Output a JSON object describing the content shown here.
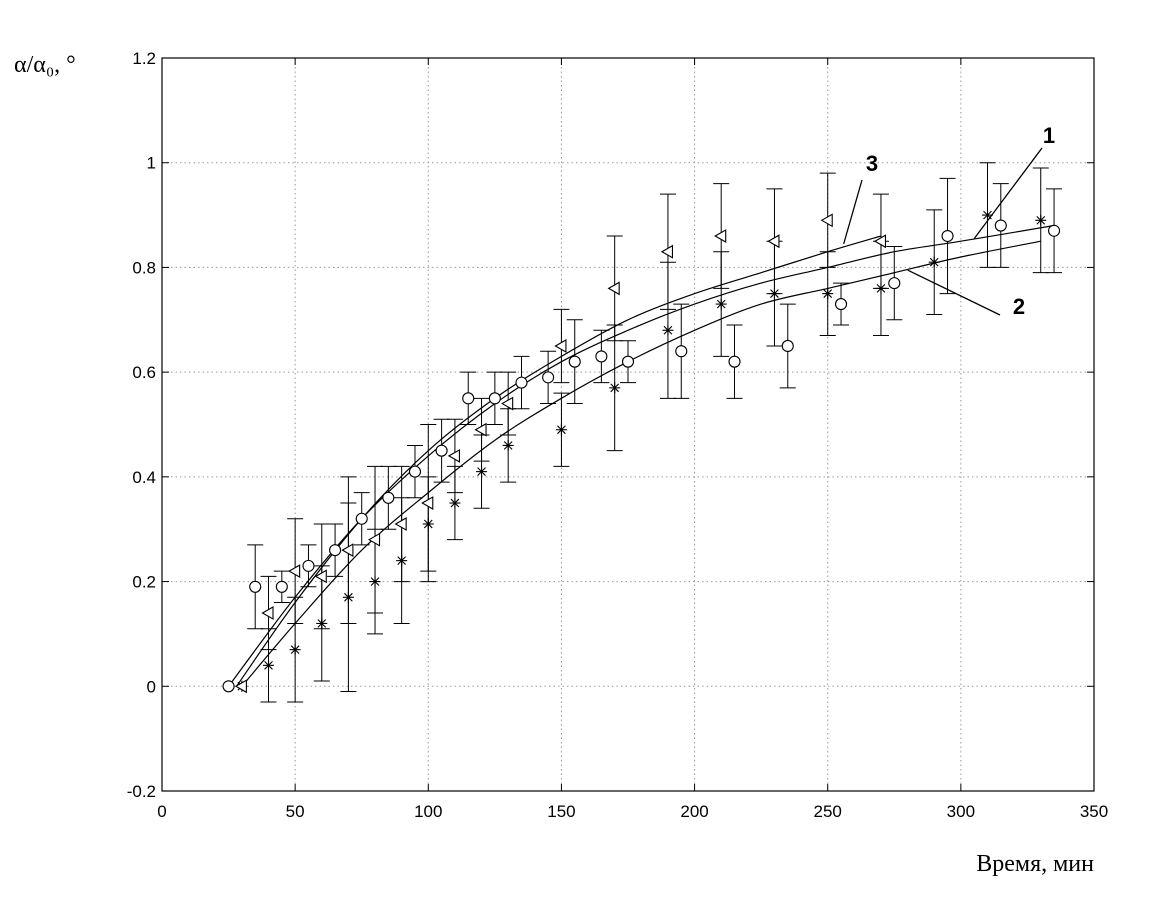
{
  "chart_data": {
    "type": "scatter",
    "title": "",
    "xlabel": "Время, мин",
    "ylabel": "α/α₀, °",
    "xlim": [
      0,
      350
    ],
    "ylim": [
      -0.2,
      1.2
    ],
    "x_ticks": [
      0,
      50,
      100,
      150,
      200,
      250,
      300,
      350
    ],
    "y_ticks": [
      -0.2,
      0,
      0.2,
      0.4,
      0.6,
      0.8,
      1,
      1.2
    ],
    "y_tick_labels": [
      "-0.2",
      "0",
      "0.2",
      "0.4",
      "0.6",
      "0.8",
      "1",
      "1.2"
    ],
    "grid": true,
    "series": [
      {
        "marker": "circle",
        "x": [
          25,
          35,
          45,
          55,
          65,
          75,
          85,
          95,
          105,
          115,
          125,
          135,
          145,
          155,
          165,
          175,
          195,
          215,
          235,
          255,
          275,
          295,
          315,
          335
        ],
        "y": [
          0,
          0.19,
          0.19,
          0.23,
          0.26,
          0.32,
          0.36,
          0.41,
          0.45,
          0.55,
          0.55,
          0.58,
          0.59,
          0.62,
          0.63,
          0.62,
          0.64,
          0.62,
          0.65,
          0.73,
          0.77,
          0.86,
          0.88,
          0.87
        ],
        "err": [
          0,
          0.08,
          0.03,
          0.04,
          0.05,
          0.05,
          0.06,
          0.05,
          0.06,
          0.05,
          0.05,
          0.05,
          0.05,
          0.08,
          0.05,
          0.04,
          0.09,
          0.07,
          0.08,
          0.04,
          0.07,
          0.11,
          0.08,
          0.08
        ]
      },
      {
        "marker": "star",
        "x": [
          30,
          40,
          50,
          60,
          70,
          80,
          90,
          100,
          110,
          120,
          130,
          150,
          170,
          190,
          210,
          230,
          250,
          270,
          290,
          310,
          330
        ],
        "y": [
          0,
          0.04,
          0.07,
          0.12,
          0.17,
          0.2,
          0.24,
          0.31,
          0.35,
          0.41,
          0.46,
          0.49,
          0.57,
          0.68,
          0.73,
          0.75,
          0.75,
          0.76,
          0.81,
          0.9,
          0.89
        ],
        "err": [
          0,
          0.07,
          0.1,
          0.11,
          0.18,
          0.1,
          0.12,
          0.09,
          0.07,
          0.07,
          0.07,
          0.07,
          0.12,
          0.13,
          0.1,
          0.1,
          0.08,
          0.09,
          0.1,
          0.1,
          0.1
        ]
      },
      {
        "marker": "triangle-left",
        "x": [
          30,
          40,
          50,
          60,
          70,
          80,
          90,
          100,
          110,
          120,
          130,
          150,
          170,
          190,
          210,
          230,
          250,
          270
        ],
        "y": [
          0,
          0.14,
          0.22,
          0.21,
          0.26,
          0.28,
          0.31,
          0.35,
          0.44,
          0.49,
          0.54,
          0.65,
          0.76,
          0.83,
          0.86,
          0.85,
          0.89,
          0.85
        ],
        "err": [
          0,
          0.07,
          0.1,
          0.1,
          0.14,
          0.14,
          0.11,
          0.15,
          0.07,
          0.06,
          0.06,
          0.07,
          0.1,
          0.11,
          0.1,
          0.1,
          0.09,
          0.09
        ]
      }
    ],
    "curves": [
      {
        "label": "1",
        "x": [
          25,
          50,
          75,
          100,
          125,
          150,
          175,
          200,
          225,
          250,
          275,
          300,
          335
        ],
        "y": [
          0,
          0.17,
          0.32,
          0.44,
          0.54,
          0.62,
          0.68,
          0.73,
          0.77,
          0.8,
          0.83,
          0.85,
          0.88
        ]
      },
      {
        "label": "2",
        "x": [
          30,
          50,
          75,
          100,
          125,
          150,
          175,
          200,
          225,
          250,
          275,
          300,
          330
        ],
        "y": [
          0,
          0.12,
          0.26,
          0.37,
          0.47,
          0.55,
          0.62,
          0.68,
          0.73,
          0.76,
          0.79,
          0.82,
          0.85
        ]
      },
      {
        "label": "3",
        "x": [
          28,
          50,
          75,
          100,
          125,
          150,
          175,
          200,
          225,
          250,
          270
        ],
        "y": [
          0,
          0.16,
          0.32,
          0.45,
          0.55,
          0.63,
          0.7,
          0.75,
          0.79,
          0.83,
          0.86
        ]
      }
    ]
  }
}
